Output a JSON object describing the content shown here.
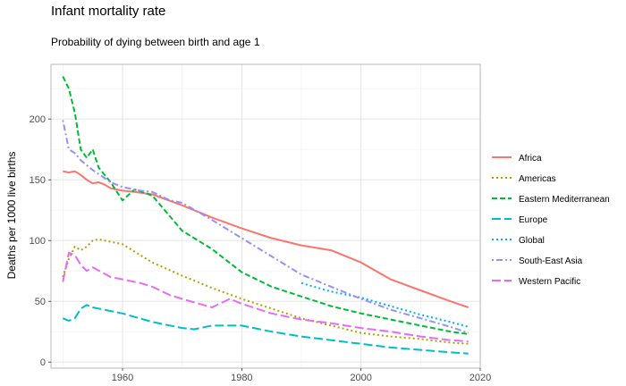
{
  "chart_data": {
    "type": "line",
    "title": "Infant mortality rate",
    "subtitle": "Probability of dying between birth and age 1",
    "xlabel": "",
    "ylabel": "Deaths per 1000 live births",
    "xlim": [
      1948,
      2020
    ],
    "ylim": [
      -5,
      245
    ],
    "xticks": [
      1960,
      1980,
      2000,
      2020
    ],
    "yticks": [
      0,
      50,
      100,
      150,
      200
    ],
    "grid": true,
    "legend_position": "right",
    "series": [
      {
        "name": "Africa",
        "color": "#F8766D",
        "dash": "solid",
        "x": [
          1950,
          1951,
          1952,
          1953,
          1954,
          1955,
          1956,
          1957,
          1958,
          1960,
          1962,
          1965,
          1970,
          1975,
          1980,
          1985,
          1990,
          1995,
          2000,
          2005,
          2010,
          2015,
          2018
        ],
        "values": [
          157,
          156,
          157,
          154,
          150,
          147,
          148,
          146,
          143,
          141,
          140,
          138,
          129,
          119,
          110,
          102,
          96,
          92,
          82,
          68,
          59,
          50,
          45
        ]
      },
      {
        "name": "Americas",
        "color": "#B79F00",
        "dash": "dotted",
        "x": [
          1950,
          1951,
          1952,
          1953,
          1954,
          1955,
          1956,
          1958,
          1960,
          1965,
          1970,
          1975,
          1980,
          1985,
          1990,
          1995,
          2000,
          2005,
          2010,
          2015,
          2018
        ],
        "values": [
          70,
          85,
          95,
          92,
          95,
          100,
          101,
          99,
          97,
          82,
          71,
          61,
          52,
          44,
          36,
          30,
          24,
          21,
          19,
          16,
          15
        ]
      },
      {
        "name": "Eastern Mediterranean",
        "color": "#00BA38",
        "dash": "dashed",
        "x": [
          1950,
          1951,
          1952,
          1953,
          1954,
          1955,
          1956,
          1958,
          1960,
          1962,
          1965,
          1970,
          1975,
          1980,
          1985,
          1990,
          1995,
          2000,
          2005,
          2010,
          2015,
          2018
        ],
        "values": [
          235,
          225,
          205,
          175,
          168,
          175,
          160,
          148,
          133,
          142,
          137,
          108,
          93,
          74,
          62,
          54,
          46,
          40,
          35,
          30,
          25,
          23
        ]
      },
      {
        "name": "Europe",
        "color": "#00BFC4",
        "dash": "longdash",
        "x": [
          1950,
          1951,
          1952,
          1953,
          1954,
          1955,
          1960,
          1965,
          1970,
          1972,
          1975,
          1980,
          1985,
          1990,
          1995,
          2000,
          2005,
          2010,
          2015,
          2018
        ],
        "values": [
          36,
          34,
          36,
          44,
          47,
          45,
          40,
          33,
          28,
          27,
          30,
          30,
          25,
          21,
          18,
          15,
          12,
          10,
          8,
          7
        ]
      },
      {
        "name": "Global",
        "color": "#00B0F6",
        "dash": "dotted",
        "x": [
          1990,
          1995,
          2000,
          2005,
          2010,
          2015,
          2018
        ],
        "values": [
          65,
          58,
          53,
          46,
          39,
          33,
          29
        ]
      },
      {
        "name": "South-East Asia",
        "color": "#9590FF",
        "dash": "dotdash",
        "x": [
          1950,
          1951,
          1952,
          1953,
          1955,
          1958,
          1960,
          1963,
          1965,
          1968,
          1970,
          1975,
          1980,
          1985,
          1990,
          1995,
          2000,
          2005,
          2010,
          2015,
          2018
        ],
        "values": [
          199,
          175,
          172,
          166,
          158,
          148,
          144,
          141,
          140,
          133,
          131,
          117,
          102,
          87,
          72,
          62,
          52,
          43,
          36,
          29,
          24
        ]
      },
      {
        "name": "Western Pacific",
        "color": "#E76BF3",
        "dash": "longdash",
        "x": [
          1950,
          1951,
          1952,
          1953,
          1954,
          1955,
          1958,
          1960,
          1963,
          1965,
          1968,
          1970,
          1975,
          1978,
          1980,
          1985,
          1990,
          1995,
          2000,
          2005,
          2010,
          2015,
          2018
        ],
        "values": [
          66,
          90,
          88,
          80,
          75,
          78,
          70,
          68,
          65,
          62,
          55,
          52,
          45,
          52,
          48,
          40,
          35,
          32,
          28,
          25,
          21,
          18,
          17
        ]
      }
    ]
  }
}
